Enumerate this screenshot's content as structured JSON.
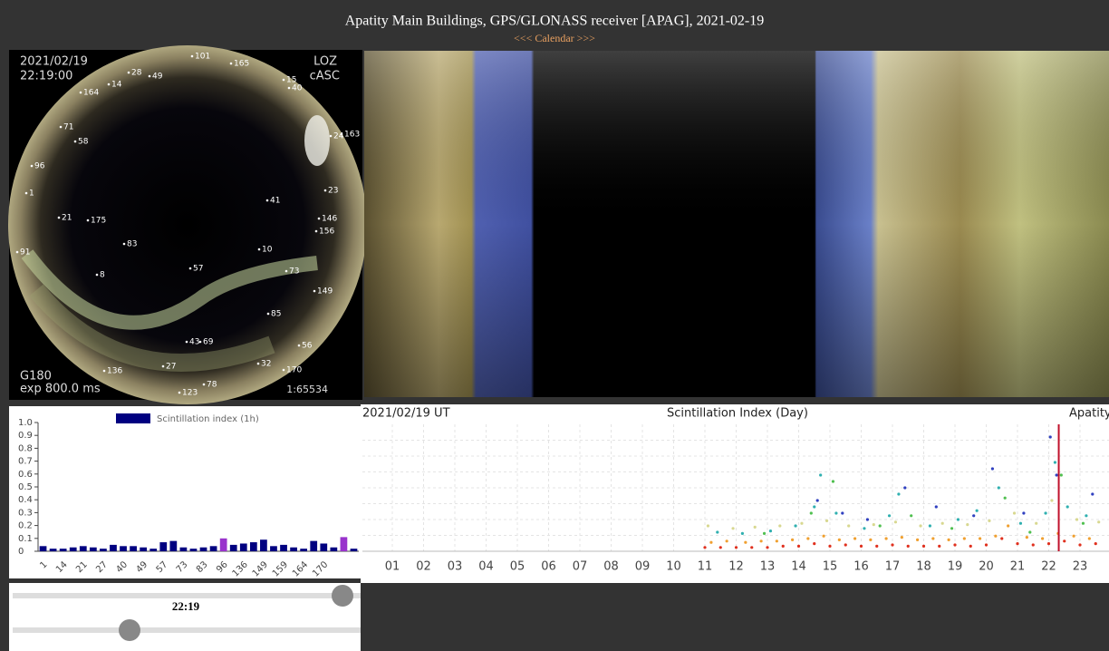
{
  "header": {
    "title": "Apatity Main Buildings, GPS/GLONASS receiver [APAG], 2021-02-19",
    "nav": "<<< Calendar >>>"
  },
  "sky_image": {
    "date": "2021/02/19",
    "time": "22:19:00",
    "site": "LOZ",
    "camera": "cASC",
    "filter": "G180",
    "exposure": "exp 800.0 ms",
    "scale": "1:65534",
    "satellites": [
      101,
      165,
      28,
      49,
      14,
      164,
      15,
      40,
      71,
      58,
      96,
      24,
      163,
      1,
      41,
      23,
      21,
      175,
      146,
      156,
      83,
      91,
      10,
      8,
      57,
      73,
      149,
      85,
      43,
      69,
      56,
      32,
      27,
      136,
      170,
      123,
      78
    ]
  },
  "chart_data": [
    {
      "type": "bar",
      "ylim": [
        0,
        1
      ],
      "yticks": [
        0,
        0.1,
        0.2,
        0.3,
        0.4,
        0.5,
        0.6,
        0.7,
        0.8,
        0.9,
        {
          "value": 1,
          "label": "1.0"
        }
      ],
      "categories": [
        1,
        null,
        14,
        null,
        21,
        null,
        27,
        null,
        40,
        null,
        49,
        null,
        57,
        null,
        73,
        null,
        83,
        null,
        96,
        null,
        136,
        null,
        149,
        null,
        159,
        null,
        164,
        null,
        170,
        null,
        null,
        null
      ],
      "series": [
        {
          "name": "Scintillation index (1h)",
          "color": "#000080",
          "values": [
            0.04,
            0.02,
            0.02,
            0.03,
            0.04,
            0.03,
            0.02,
            0.05,
            0.04,
            0.04,
            0.03,
            0.02,
            0.07,
            0.08,
            0.03,
            0.02,
            0.03,
            0.04,
            0.1,
            0.05,
            0.06,
            0.07,
            0.09,
            0.04,
            0.05,
            0.03,
            0.02,
            0.08,
            0.06,
            0.03,
            0.11,
            0.02
          ],
          "colors": [
            "#000080",
            "#000080",
            "#000080",
            "#000080",
            "#000080",
            "#000080",
            "#000080",
            "#000080",
            "#000080",
            "#000080",
            "#000080",
            "#000080",
            "#000080",
            "#000080",
            "#000080",
            "#000080",
            "#000080",
            "#000080",
            "#9933cc",
            "#000080",
            "#000080",
            "#000080",
            "#000080",
            "#000080",
            "#000080",
            "#000080",
            "#000080",
            "#000080",
            "#000080",
            "#000080",
            "#9933cc",
            "#000080"
          ]
        }
      ]
    },
    {
      "type": "scatter",
      "title": "Scintillation Index (Day)",
      "subtitle": "2021/02/19 UT",
      "annotation": "Apatity",
      "grid": true,
      "xlim": [
        0,
        24
      ],
      "ylim": [
        0,
        1
      ],
      "xticks": [
        {
          "value": 1,
          "label": "01"
        },
        {
          "value": 2,
          "label": "02"
        },
        {
          "value": 3,
          "label": "03"
        },
        {
          "value": 4,
          "label": "04"
        },
        {
          "value": 5,
          "label": "05"
        },
        {
          "value": 6,
          "label": "06"
        },
        {
          "value": 7,
          "label": "07"
        },
        {
          "value": 8,
          "label": "08"
        },
        {
          "value": 9,
          "label": "09"
        },
        10,
        11,
        12,
        13,
        14,
        15,
        16,
        17,
        18,
        19,
        20,
        21,
        22,
        23
      ],
      "current_time": 22.32,
      "current_time_color": "#c0102a",
      "series": [
        {
          "color": "#e0301e",
          "x": [
            11,
            11.5,
            12,
            12.5,
            13,
            13.5,
            14,
            14.5,
            15,
            15.5,
            16,
            16.5,
            17,
            17.5,
            18,
            18.5,
            19,
            19.5,
            20,
            20.5,
            21,
            21.5,
            22,
            22.5,
            23,
            23.5
          ],
          "values": [
            0.03,
            0.03,
            0.03,
            0.03,
            0.03,
            0.04,
            0.04,
            0.06,
            0.04,
            0.05,
            0.04,
            0.04,
            0.05,
            0.04,
            0.04,
            0.04,
            0.05,
            0.04,
            0.05,
            0.1,
            0.06,
            0.05,
            0.06,
            0.08,
            0.05,
            0.06
          ]
        },
        {
          "color": "#f0a030",
          "x": [
            11.2,
            11.7,
            12.3,
            12.8,
            13.3,
            13.8,
            14.3,
            14.8,
            15.3,
            15.8,
            16.3,
            16.8,
            17.3,
            17.8,
            18.3,
            18.8,
            19.3,
            19.8,
            20.3,
            20.7,
            21.3,
            21.8,
            22.3,
            22.8,
            23.3
          ],
          "values": [
            0.07,
            0.08,
            0.07,
            0.08,
            0.08,
            0.09,
            0.1,
            0.12,
            0.09,
            0.1,
            0.09,
            0.1,
            0.11,
            0.09,
            0.1,
            0.09,
            0.1,
            0.1,
            0.12,
            0.2,
            0.11,
            0.1,
            0.14,
            0.12,
            0.1
          ]
        },
        {
          "color": "#d8d890",
          "x": [
            11.1,
            11.9,
            12.6,
            13.4,
            14.1,
            14.9,
            15.6,
            16.4,
            17.1,
            17.9,
            18.6,
            19.4,
            20.1,
            20.9,
            21.6,
            22.1,
            22.9,
            23.6
          ],
          "values": [
            0.2,
            0.18,
            0.19,
            0.2,
            0.22,
            0.24,
            0.2,
            0.21,
            0.23,
            0.2,
            0.22,
            0.21,
            0.24,
            0.3,
            0.22,
            0.4,
            0.25,
            0.23
          ]
        },
        {
          "color": "#30b0b0",
          "x": [
            11.4,
            12.2,
            13.1,
            13.9,
            14.5,
            14.7,
            15.2,
            16.1,
            16.9,
            17.2,
            18.2,
            19.1,
            19.7,
            20.4,
            21.1,
            21.9,
            22.2,
            22.6,
            23.2
          ],
          "values": [
            0.15,
            0.14,
            0.16,
            0.2,
            0.35,
            0.6,
            0.3,
            0.18,
            0.28,
            0.45,
            0.2,
            0.25,
            0.32,
            0.5,
            0.22,
            0.3,
            0.7,
            0.35,
            0.28
          ]
        },
        {
          "color": "#50c050",
          "x": [
            12.9,
            14.4,
            15.1,
            16.6,
            17.6,
            18.9,
            20.6,
            21.4,
            22.4,
            23.1
          ],
          "values": [
            0.14,
            0.3,
            0.55,
            0.2,
            0.28,
            0.18,
            0.42,
            0.15,
            0.6,
            0.22
          ]
        },
        {
          "color": "#3040c0",
          "x": [
            14.6,
            15.4,
            16.2,
            17.4,
            18.4,
            19.6,
            20.2,
            21.2,
            22.05,
            22.25,
            23.4
          ],
          "values": [
            0.4,
            0.3,
            0.25,
            0.5,
            0.35,
            0.28,
            0.65,
            0.3,
            0.9,
            0.6,
            0.45
          ]
        }
      ]
    }
  ],
  "controls": {
    "time": "22:19"
  }
}
